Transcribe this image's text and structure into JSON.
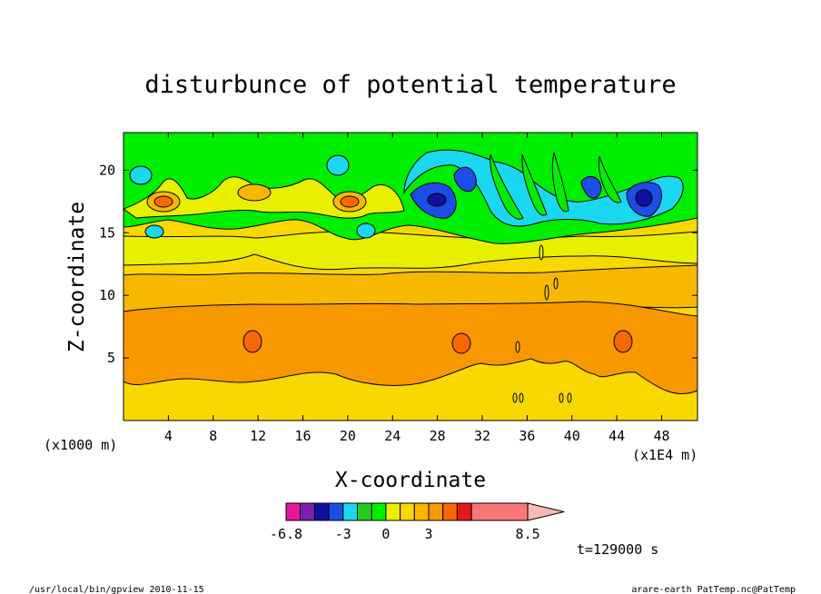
{
  "chart_data": {
    "type": "heatmap",
    "title": "disturbunce of potential temperature",
    "xlabel": "X-coordinate",
    "ylabel": "Z-coordinate",
    "x_unit_left": "(x1000 m)",
    "x_unit_right": "(x1E4 m)",
    "xlim": [
      0,
      51.2
    ],
    "ylim": [
      0,
      23
    ],
    "x_ticks": [
      4,
      8,
      12,
      16,
      20,
      24,
      28,
      32,
      36,
      40,
      44,
      48
    ],
    "y_ticks": [
      5,
      10,
      15,
      20
    ],
    "colorbar": {
      "levels": [
        -6.8,
        -6,
        -5,
        -4,
        -3,
        -2,
        -1,
        0,
        1,
        2,
        3,
        4,
        5,
        6,
        8.5
      ],
      "colors": [
        "#e8159b",
        "#7b1fb0",
        "#1010a0",
        "#1c4de8",
        "#1ad8f0",
        "#22cc22",
        "#00ee00",
        "#e8f000",
        "#f8d800",
        "#f8b800",
        "#f89800",
        "#f86800",
        "#e81818",
        "#f87878",
        "#f8b8b8"
      ],
      "tick_labels": [
        "-6.8",
        "-3",
        "0",
        "3",
        "8.5"
      ],
      "extend": "max"
    },
    "features": [
      {
        "region": "z 2-9 km",
        "value": "3 to 4"
      },
      {
        "region": "z 9-12 km",
        "value": "2 to 3"
      },
      {
        "region": "z 12-14 km",
        "value": "1 to 2"
      },
      {
        "region": "z 15-22 km, x 26-48",
        "value": "-6 to 0"
      }
    ],
    "annotation_time": "t=129000 s"
  },
  "footer": {
    "left": "/usr/local/bin/gpview  2010-11-15",
    "right": "arare-earth_PatTemp.nc@PatTemp"
  }
}
